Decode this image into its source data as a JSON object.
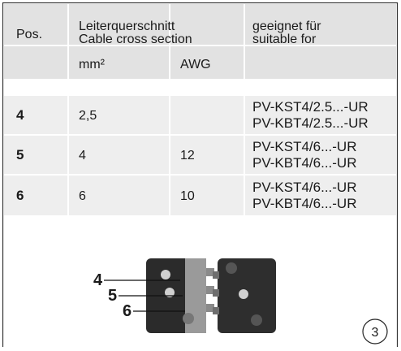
{
  "header": {
    "pos": "Pos.",
    "cross_section": [
      "Leiterquerschnitt",
      "Cable cross section"
    ],
    "suitable": [
      "geeignet für",
      "suitable for"
    ]
  },
  "subheader": {
    "mm2": "mm²",
    "awg": "AWG"
  },
  "table": {
    "rows": [
      {
        "pos": "4",
        "mm2": "2,5",
        "awg": null,
        "suitable": [
          "PV-KST4/2.5...-UR",
          "PV-KBT4/2.5...-UR"
        ]
      },
      {
        "pos": "5",
        "mm2": "4",
        "awg": "12",
        "suitable": [
          "PV-KST4/6...-UR",
          "PV-KBT4/6...-UR"
        ]
      },
      {
        "pos": "6",
        "mm2": "6",
        "awg": "10",
        "suitable": [
          "PV-KST4/6...-UR",
          "PV-KBT4/6...-UR"
        ]
      }
    ]
  },
  "figure": {
    "labels": [
      "4",
      "5",
      "6"
    ],
    "number": "3"
  }
}
